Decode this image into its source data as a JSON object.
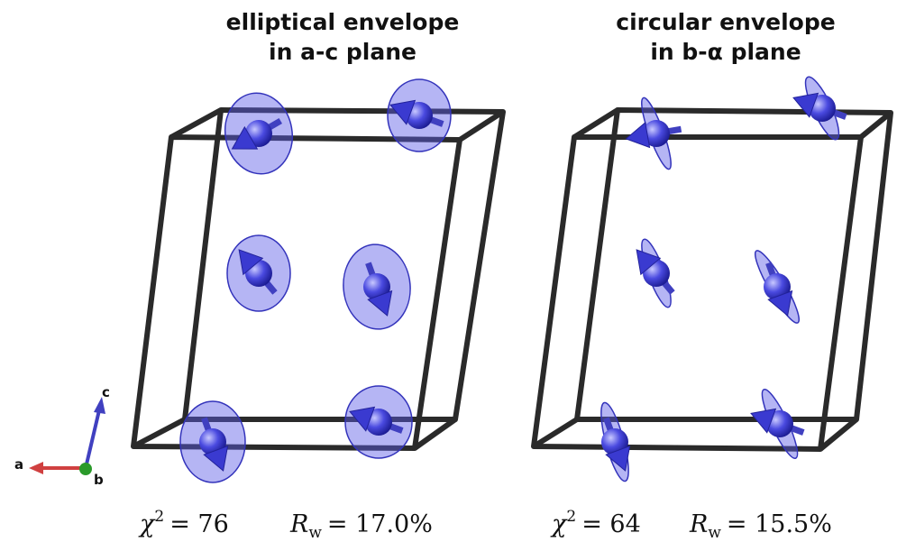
{
  "panels": [
    {
      "title": [
        "elliptical envelope",
        "in a-c plane"
      ],
      "chi": {
        "symbol": "χ",
        "exponent": "2",
        "equals": "= 76"
      },
      "rw": {
        "symbol": "R",
        "subscript": "w",
        "equals": "= 17.0%"
      }
    },
    {
      "title": [
        "circular envelope",
        "in b-α plane"
      ],
      "chi": {
        "symbol": "χ",
        "exponent": "2",
        "equals": "= 64"
      },
      "rw": {
        "symbol": "R",
        "subscript": "w",
        "equals": "= 15.5%"
      }
    }
  ],
  "axes": {
    "a": "a",
    "b": "b",
    "c": "c"
  }
}
